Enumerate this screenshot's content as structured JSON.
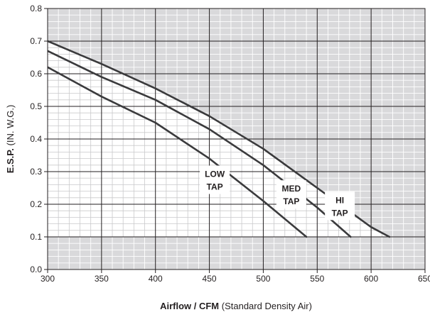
{
  "chart_data": {
    "type": "line",
    "xlim": [
      300,
      650
    ],
    "ylim": [
      0.0,
      0.8
    ],
    "x_ticks": [
      "300",
      "350",
      "400",
      "450",
      "500",
      "550",
      "600",
      "650"
    ],
    "y_ticks": [
      "0.0",
      "0.1",
      "0.2",
      "0.3",
      "0.4",
      "0.5",
      "0.6",
      "0.7",
      "0.8"
    ],
    "xlabel_bold": "Airflow / CFM",
    "xlabel_rest": "(Standard Density Air)",
    "ylabel_bold": "E.S.P.",
    "ylabel_rest": "(IN. W.G.)",
    "grid": true,
    "colors": {
      "shaded_region": "#d9d9db",
      "grid_line": "#231f20",
      "minor_grid_line": "#ffffff",
      "curve": "#3a3a3c",
      "text": "#231f20"
    },
    "series": [
      {
        "name_lines": [
          "LOW",
          "TAP"
        ],
        "x": [
          300,
          350,
          400,
          450,
          500,
          540
        ],
        "y": [
          0.62,
          0.53,
          0.45,
          0.34,
          0.21,
          0.1
        ]
      },
      {
        "name_lines": [
          "MED",
          "TAP"
        ],
        "x": [
          300,
          350,
          400,
          450,
          500,
          550,
          581
        ],
        "y": [
          0.67,
          0.59,
          0.52,
          0.43,
          0.32,
          0.19,
          0.1
        ]
      },
      {
        "name_lines": [
          "HI",
          "TAP"
        ],
        "x": [
          300,
          350,
          400,
          450,
          500,
          550,
          600,
          617
        ],
        "y": [
          0.7,
          0.63,
          0.555,
          0.47,
          0.37,
          0.25,
          0.13,
          0.1
        ]
      }
    ]
  }
}
